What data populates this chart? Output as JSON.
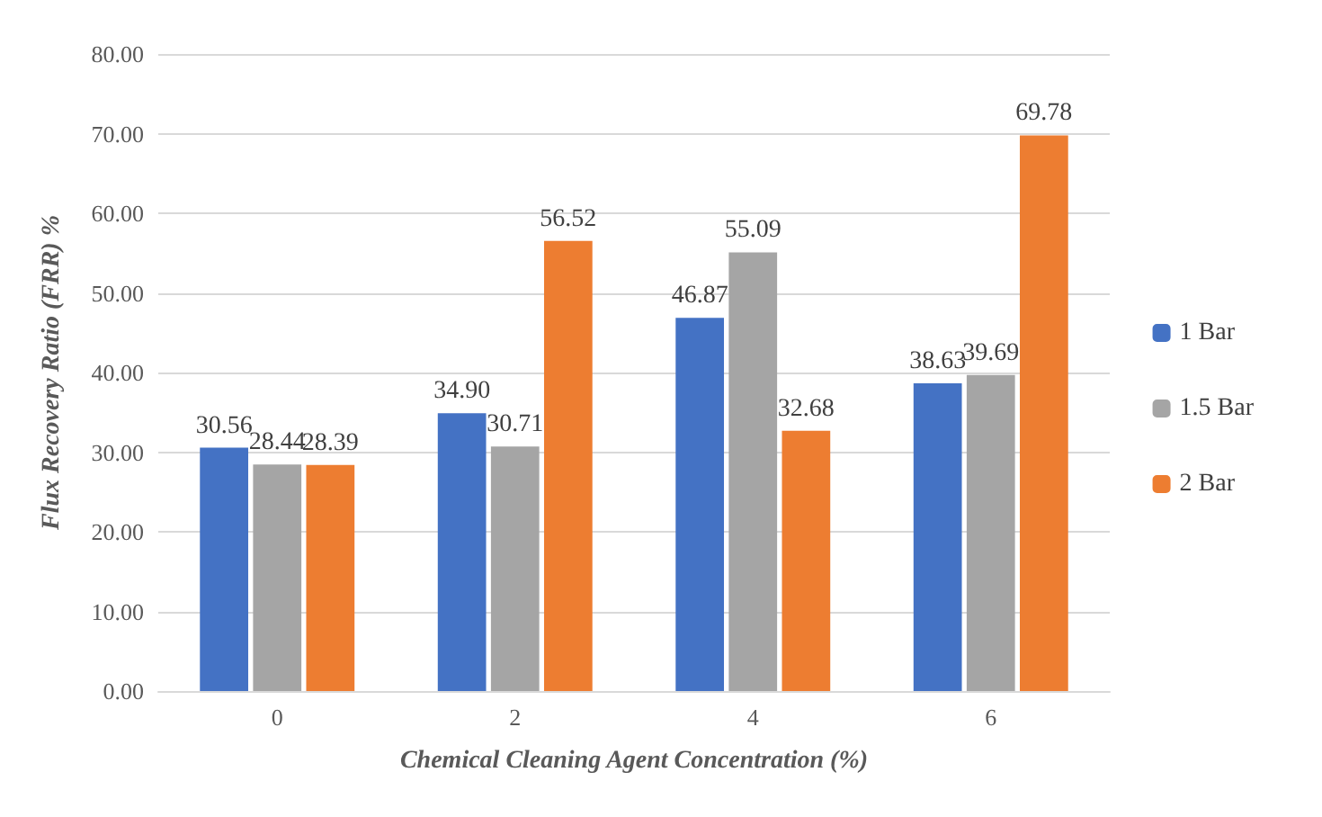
{
  "chart_data": {
    "type": "bar",
    "xlabel": "Chemical Cleaning Agent Concentration (%)",
    "ylabel": "Flux Recovery Ratio (FRR) %",
    "categories": [
      "0",
      "2",
      "4",
      "6"
    ],
    "series": [
      {
        "name": "1 Bar",
        "color": "#4472c4",
        "values": [
          30.56,
          34.9,
          46.87,
          38.63
        ],
        "value_labels": [
          "30.56",
          "34.90",
          "46.87",
          "38.63"
        ]
      },
      {
        "name": "1.5 Bar",
        "color": "#a5a5a5",
        "values": [
          28.44,
          30.71,
          55.09,
          39.69
        ],
        "value_labels": [
          "28.44",
          "30.71",
          "55.09",
          "39.69"
        ]
      },
      {
        "name": "2 Bar",
        "color": "#ed7d31",
        "values": [
          28.39,
          56.52,
          32.68,
          69.78
        ],
        "value_labels": [
          "28.39",
          "56.52",
          "32.68",
          "69.78"
        ]
      }
    ],
    "ylim": [
      0,
      80
    ],
    "yticks": [
      {
        "value": 0,
        "label": "0.00"
      },
      {
        "value": 10,
        "label": "10.00"
      },
      {
        "value": 20,
        "label": "20.00"
      },
      {
        "value": 30,
        "label": "30.00"
      },
      {
        "value": 40,
        "label": "40.00"
      },
      {
        "value": 50,
        "label": "50.00"
      },
      {
        "value": 60,
        "label": "60.00"
      },
      {
        "value": 70,
        "label": "70.00"
      },
      {
        "value": 80,
        "label": "80.00"
      }
    ],
    "grid": "y",
    "legend": "right"
  }
}
